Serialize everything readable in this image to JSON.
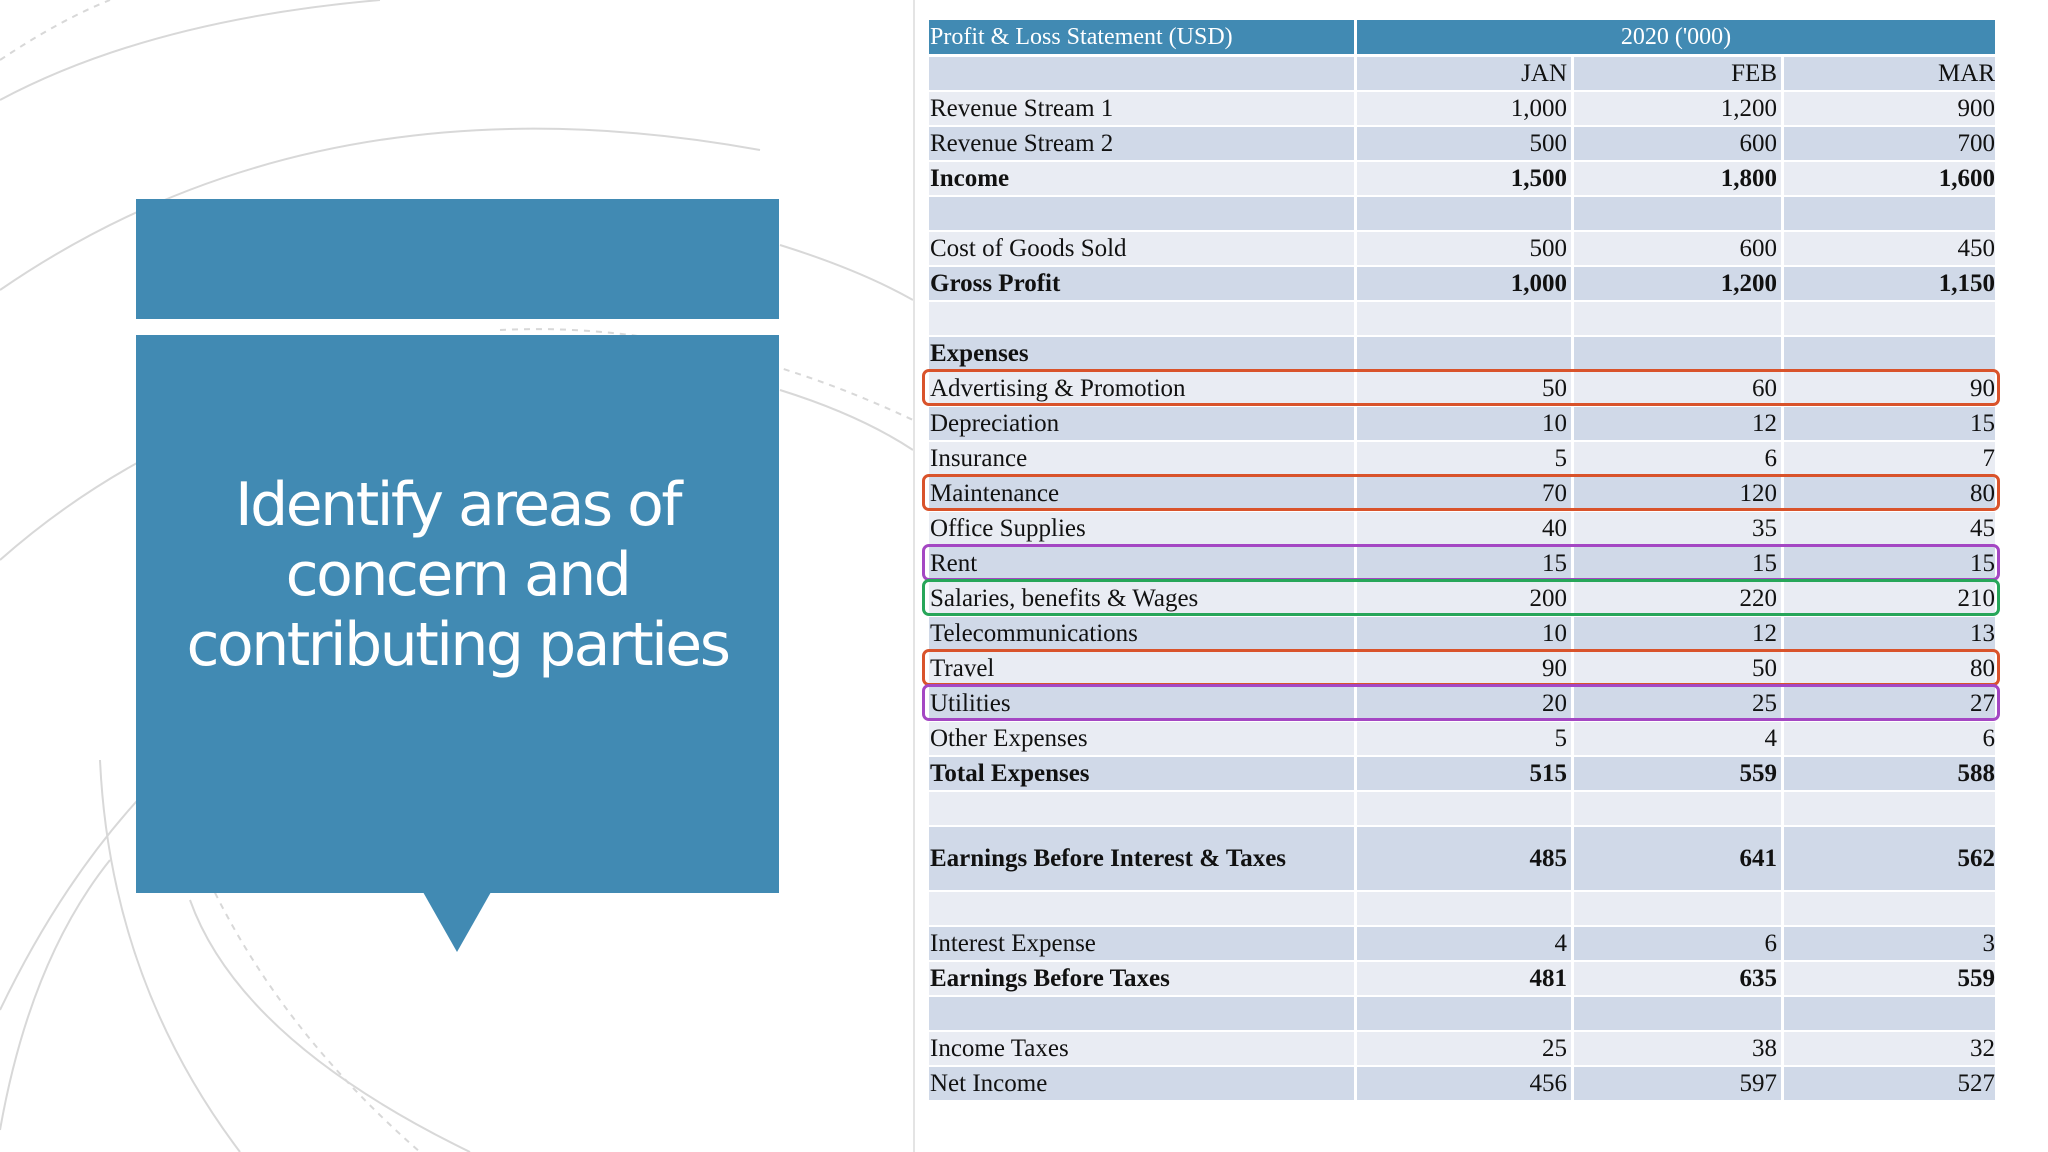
{
  "slide": {
    "title": "Identify areas of concern and contributing parties"
  },
  "colors": {
    "accent": "#418ab3",
    "row_light": "#e9ecf3",
    "row_dark": "#d0d9e8",
    "highlight_orange": "#d9532b",
    "highlight_purple": "#a447c3",
    "highlight_green": "#27a659"
  },
  "table": {
    "title": "Profit & Loss Statement (USD)",
    "year_header": "2020 ('000)",
    "months": [
      "JAN",
      "FEB",
      "MAR"
    ],
    "rows": [
      {
        "label": "Revenue Stream 1",
        "values": [
          "1,000",
          "1,200",
          "900"
        ]
      },
      {
        "label": "Revenue Stream 2",
        "values": [
          "500",
          "600",
          "700"
        ]
      },
      {
        "label": "Income",
        "values": [
          "1,500",
          "1,800",
          "1,600"
        ],
        "bold": true
      },
      {
        "label": "",
        "values": [
          "",
          "",
          ""
        ]
      },
      {
        "label": "Cost of Goods Sold",
        "values": [
          "500",
          "600",
          "450"
        ]
      },
      {
        "label": "Gross Profit",
        "values": [
          "1,000",
          "1,200",
          "1,150"
        ],
        "bold": true
      },
      {
        "label": "",
        "values": [
          "",
          "",
          ""
        ]
      },
      {
        "label": "Expenses",
        "values": [
          "",
          "",
          ""
        ],
        "bold": true
      },
      {
        "label": "Advertising & Promotion",
        "values": [
          "50",
          "60",
          "90"
        ],
        "highlight": "orange"
      },
      {
        "label": "Depreciation",
        "values": [
          "10",
          "12",
          "15"
        ]
      },
      {
        "label": "Insurance",
        "values": [
          "5",
          "6",
          "7"
        ]
      },
      {
        "label": "Maintenance",
        "values": [
          "70",
          "120",
          "80"
        ],
        "highlight": "orange"
      },
      {
        "label": "Office Supplies",
        "values": [
          "40",
          "35",
          "45"
        ]
      },
      {
        "label": "Rent",
        "values": [
          "15",
          "15",
          "15"
        ],
        "highlight": "purple"
      },
      {
        "label": "Salaries, benefits & Wages",
        "values": [
          "200",
          "220",
          "210"
        ],
        "highlight": "green"
      },
      {
        "label": "Telecommunications",
        "values": [
          "10",
          "12",
          "13"
        ]
      },
      {
        "label": "Travel",
        "values": [
          "90",
          "50",
          "80"
        ],
        "highlight": "orange"
      },
      {
        "label": "Utilities",
        "values": [
          "20",
          "25",
          "27"
        ],
        "highlight": "purple"
      },
      {
        "label": "Other Expenses",
        "values": [
          "5",
          "4",
          "6"
        ]
      },
      {
        "label": "Total Expenses",
        "values": [
          "515",
          "559",
          "588"
        ],
        "bold": true
      },
      {
        "label": "",
        "values": [
          "",
          "",
          ""
        ]
      },
      {
        "label": "Earnings Before Interest & Taxes",
        "values": [
          "485",
          "641",
          "562"
        ],
        "bold": true
      },
      {
        "label": "",
        "values": [
          "",
          "",
          ""
        ]
      },
      {
        "label": "Interest Expense",
        "values": [
          "4",
          "6",
          "3"
        ]
      },
      {
        "label": "Earnings Before Taxes",
        "values": [
          "481",
          "635",
          "559"
        ],
        "bold": true
      },
      {
        "label": "",
        "values": [
          "",
          "",
          ""
        ]
      },
      {
        "label": "Income Taxes",
        "values": [
          "25",
          "38",
          "32"
        ]
      },
      {
        "label": "Net Income",
        "values": [
          "456",
          "597",
          "527"
        ]
      }
    ]
  }
}
